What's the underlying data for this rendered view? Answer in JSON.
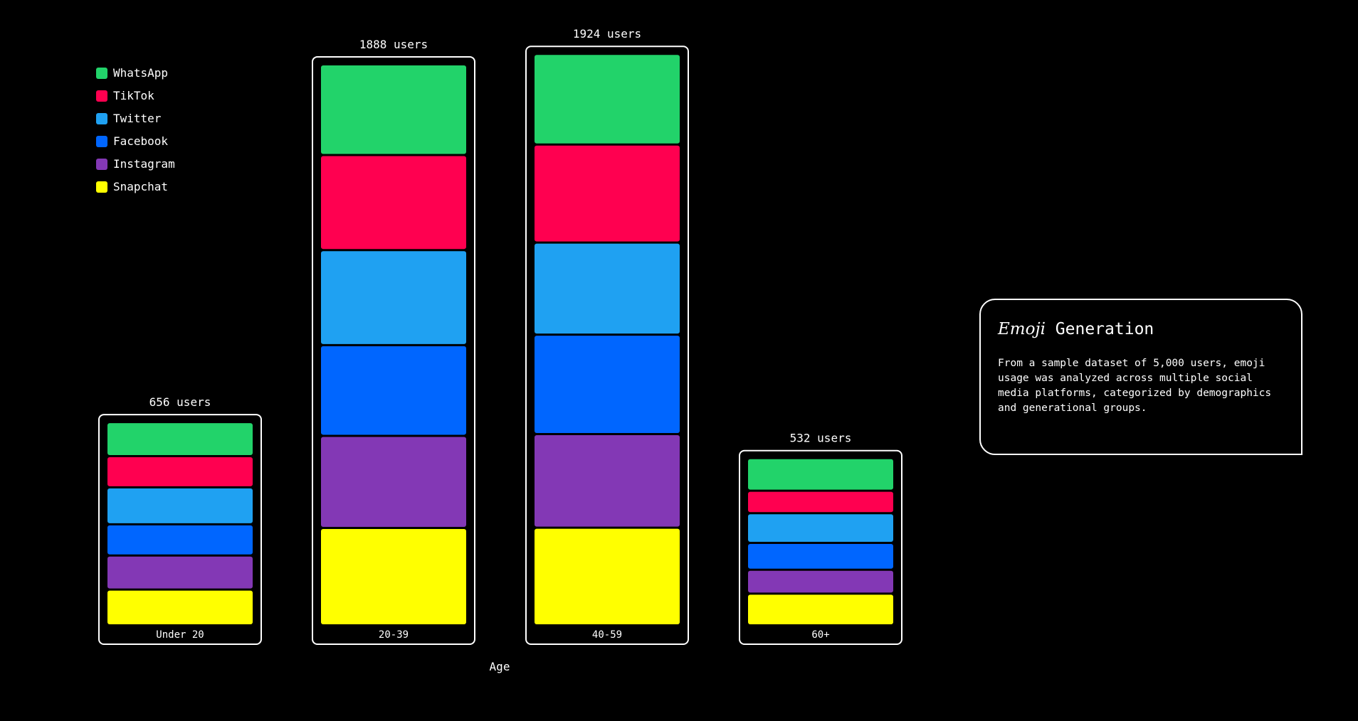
{
  "info": {
    "title_em": "Emoji",
    "title_rest": "Generation",
    "body": "From a sample dataset of 5,000 users, emoji usage was analyzed across multiple social media platforms, categorized by demographics and generational groups."
  },
  "chart_data": {
    "type": "bar",
    "stacked": true,
    "xlabel": "Age",
    "legend_position": "top-left",
    "categories": [
      "Under 20",
      "20-39",
      "40-59",
      "60+"
    ],
    "totals_labels": [
      "656 users",
      "1888 users",
      "1924 users",
      "532 users"
    ],
    "series": [
      {
        "name": "WhatsApp",
        "color": "#22d36a",
        "values": [
          110,
          305,
          305,
          105
        ]
      },
      {
        "name": "TikTok",
        "color": "#ff0050",
        "values": [
          100,
          320,
          330,
          70
        ]
      },
      {
        "name": "Twitter",
        "color": "#1fa1f2",
        "values": [
          120,
          320,
          310,
          95
        ]
      },
      {
        "name": "Facebook",
        "color": "#0066ff",
        "values": [
          100,
          305,
          335,
          85
        ]
      },
      {
        "name": "Instagram",
        "color": "#8338b5",
        "values": [
          110,
          310,
          315,
          75
        ]
      },
      {
        "name": "Snapchat",
        "color": "#ffff00",
        "values": [
          116,
          328,
          329,
          102
        ]
      }
    ]
  }
}
